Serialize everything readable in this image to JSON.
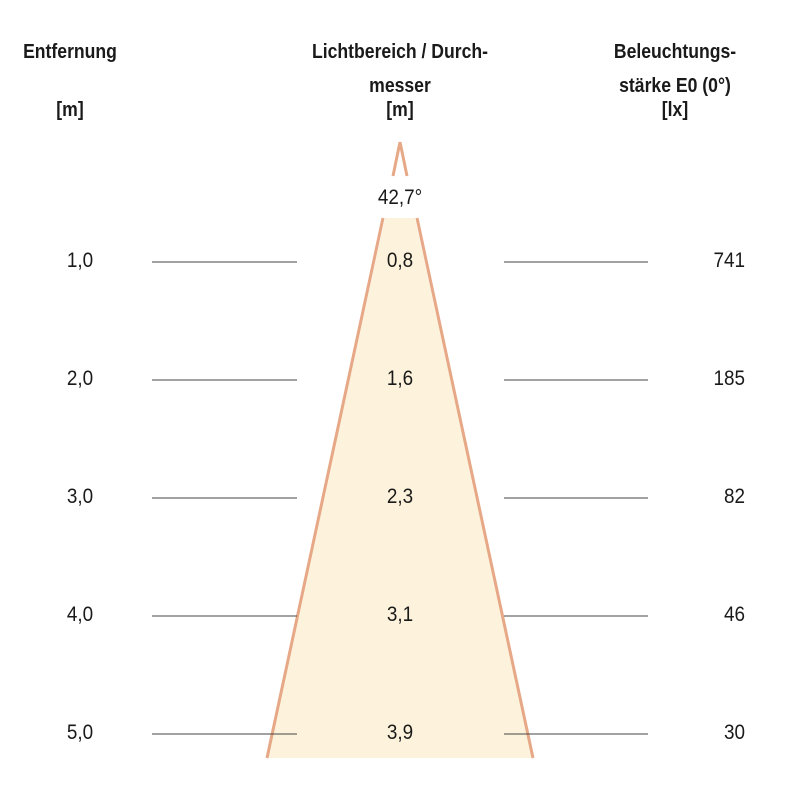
{
  "headers": {
    "distance": {
      "line1": "Entfernung",
      "unit": "[m]"
    },
    "diameter": {
      "line1": "Lichtbereich / Durch-",
      "line2": "messer",
      "unit": "[m]"
    },
    "illuminance": {
      "line1": "Beleuchtungs-",
      "line2": "stärke E0 (0°)",
      "unit": "[lx]"
    }
  },
  "beam_angle": "42,7°",
  "rows": [
    {
      "distance": "1,0",
      "diameter": "0,8",
      "illuminance": "741"
    },
    {
      "distance": "2,0",
      "diameter": "1,6",
      "illuminance": "185"
    },
    {
      "distance": "3,0",
      "diameter": "2,3",
      "illuminance": "82"
    },
    {
      "distance": "4,0",
      "diameter": "3,1",
      "illuminance": "46"
    },
    {
      "distance": "5,0",
      "diameter": "3,9",
      "illuminance": "30"
    }
  ],
  "colors": {
    "cone_fill": "#fdf3dc",
    "cone_edge": "#e6a886",
    "line": "#444444"
  }
}
